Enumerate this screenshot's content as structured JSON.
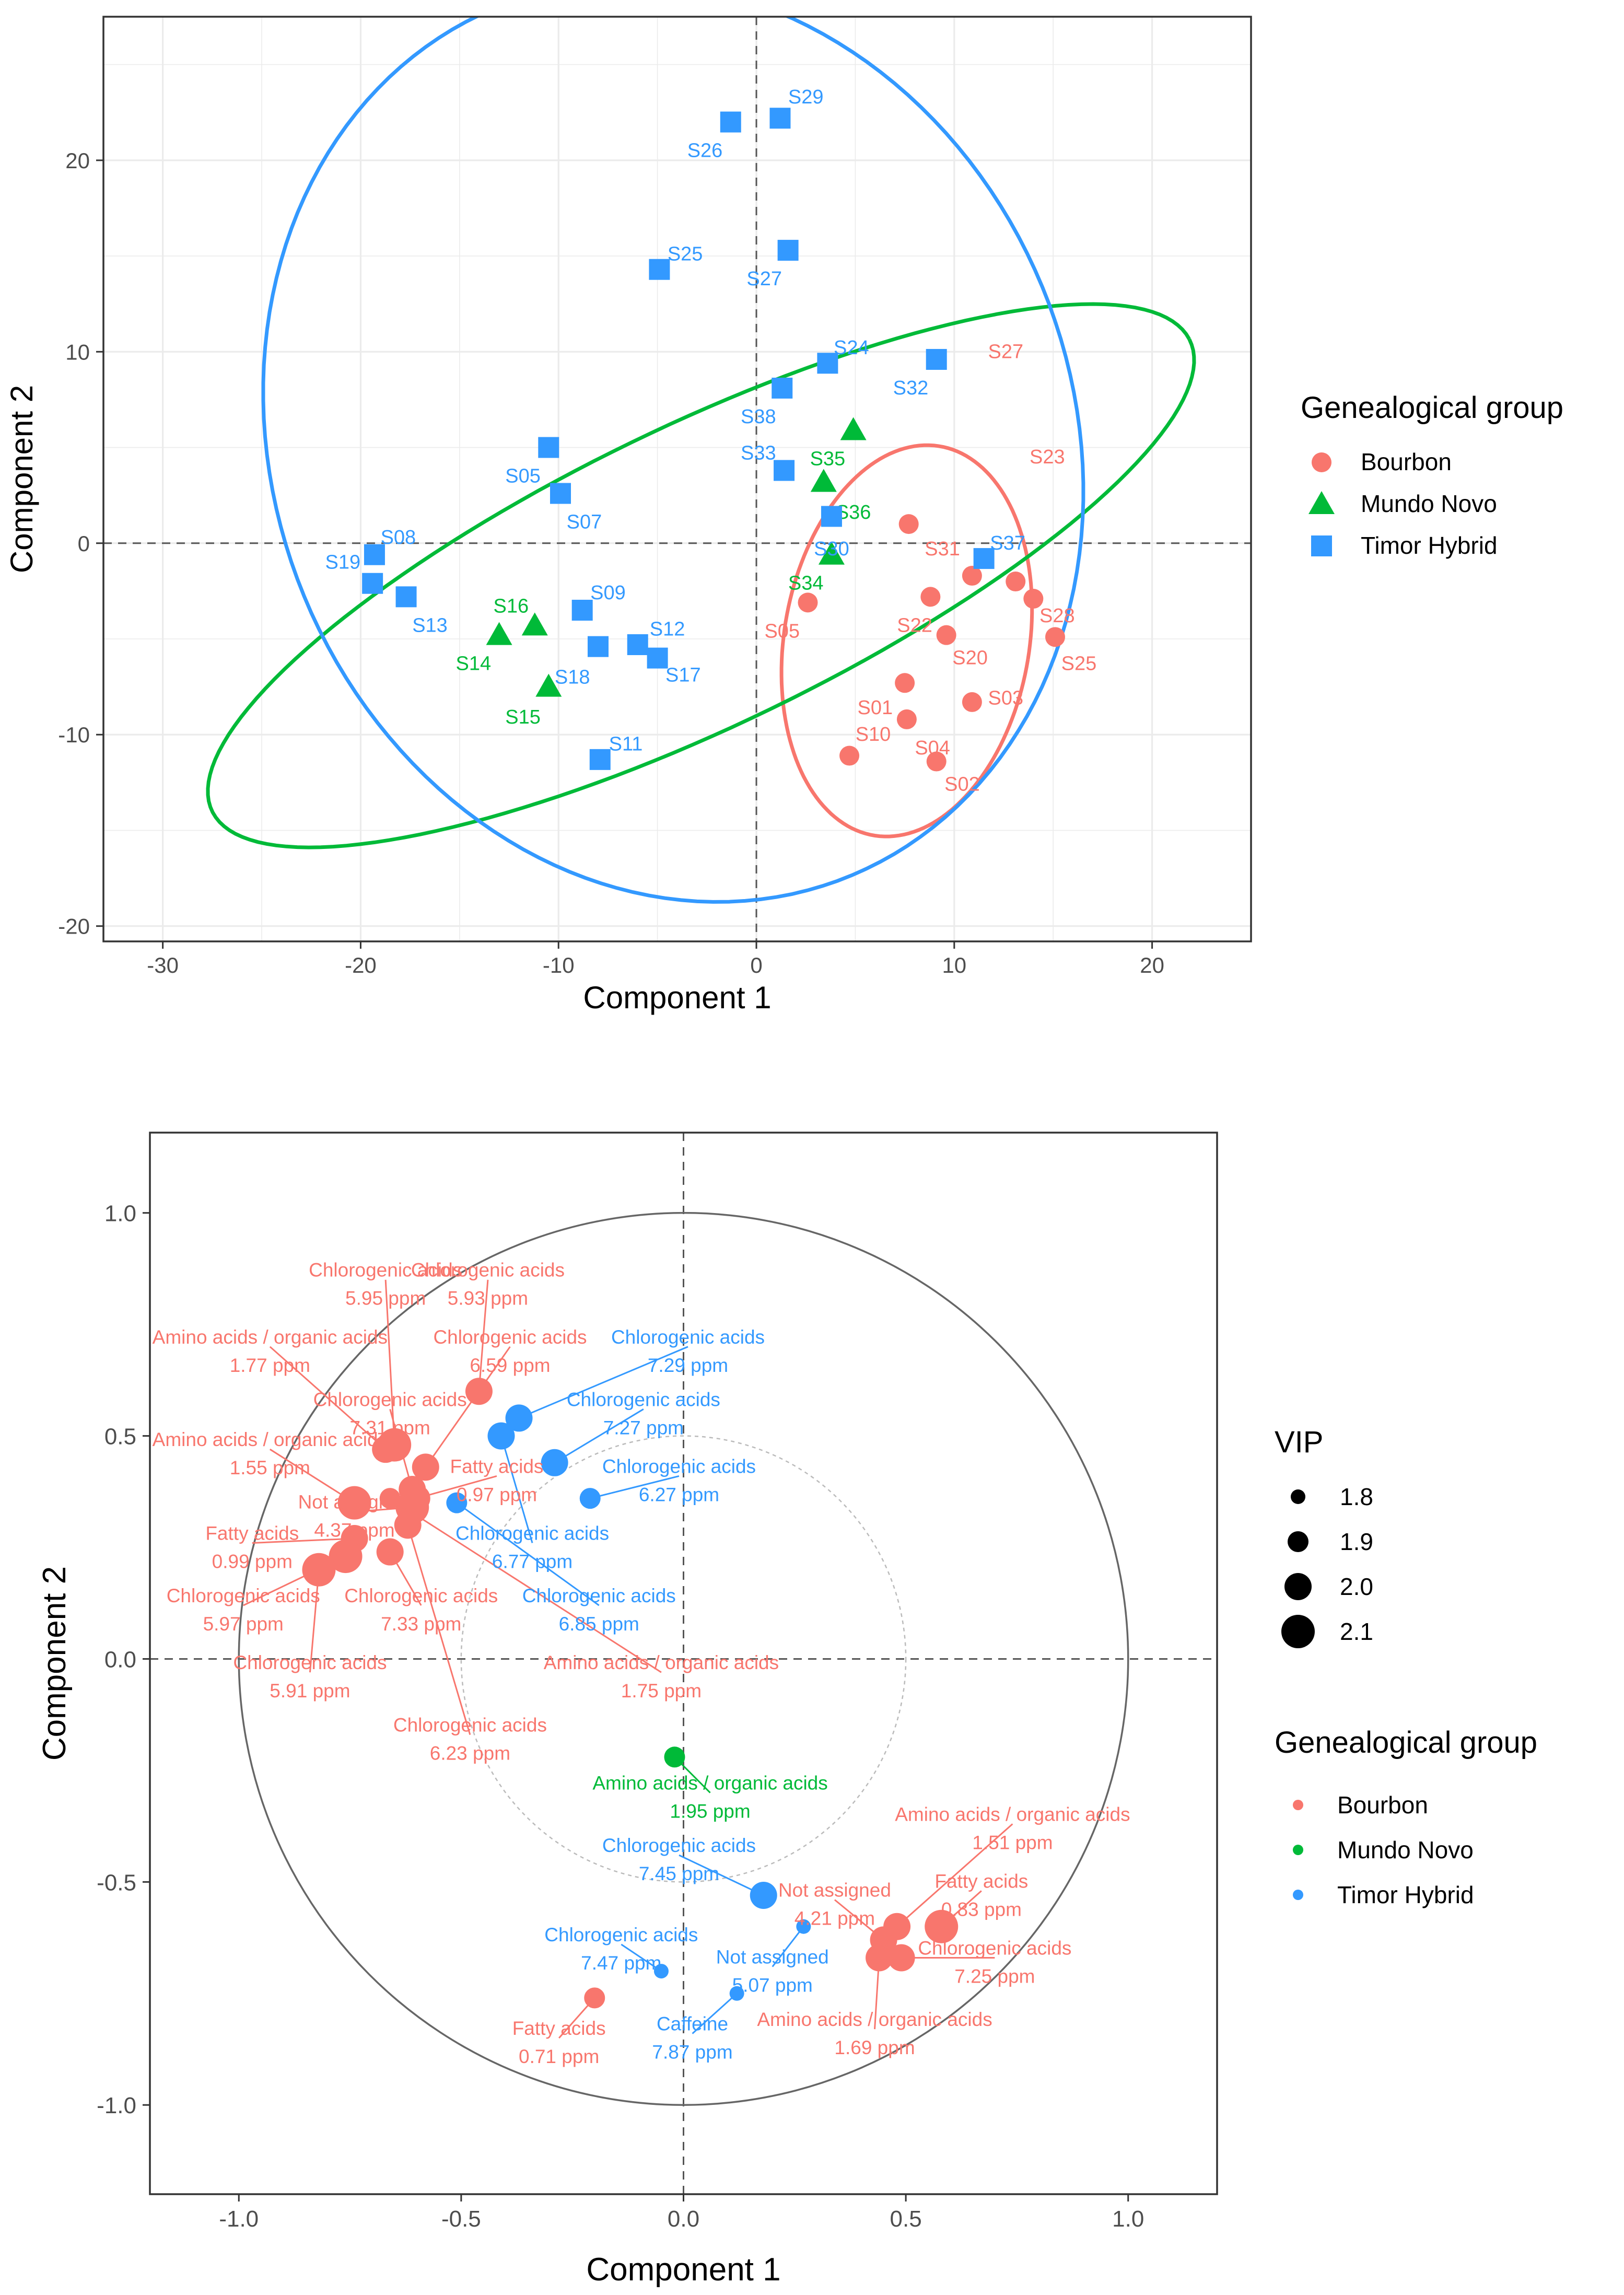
{
  "chart_data": [
    {
      "type": "scatter",
      "title": "",
      "xlabel": "Component 1",
      "ylabel": "Component 2",
      "xlim": [
        -33,
        25
      ],
      "ylim": [
        -20.8,
        27.5
      ],
      "xticks": [
        -30,
        -20,
        -10,
        0,
        10,
        20
      ],
      "yticks": [
        -20,
        -10,
        0,
        10,
        20
      ],
      "grid": true,
      "reference_lines": {
        "x": 0,
        "y": 0
      },
      "legend": {
        "title": "Genealogical group",
        "placement": "right"
      },
      "series": [
        {
          "name": "Bourbon",
          "color": "#F8766D",
          "marker": "circle",
          "points": [
            {
              "label": "S23",
              "x": 7.7,
              "y": 1.0,
              "ldx": 7,
              "ldy": 3.5
            },
            {
              "label": "S31",
              "x": 10.9,
              "y": -1.7,
              "ldx": -1.5,
              "ldy": 1.4
            },
            {
              "label": "S27",
              "x": 13.1,
              "y": -2.0,
              "ldx": -0.5,
              "ldy": 12
            },
            {
              "label": "S22",
              "x": 8.8,
              "y": -2.8,
              "ldx": -0.8,
              "ldy": -1.5
            },
            {
              "label": "S28",
              "x": 14.0,
              "y": -2.9,
              "ldx": 1.2,
              "ldy": -0.9
            },
            {
              "label": "S05",
              "x": 2.6,
              "y": -3.1,
              "ldx": -1.3,
              "ldy": -1.5
            },
            {
              "label": "S20",
              "x": 9.6,
              "y": -4.8,
              "ldx": 1.2,
              "ldy": -1.2
            },
            {
              "label": "S25",
              "x": 15.1,
              "y": -4.9,
              "ldx": 1.2,
              "ldy": -1.4
            },
            {
              "label": "S01",
              "x": 7.5,
              "y": -7.3,
              "ldx": -1.5,
              "ldy": -1.3
            },
            {
              "label": "S03",
              "x": 10.9,
              "y": -8.3,
              "ldx": 1.7,
              "ldy": 0.2
            },
            {
              "label": "S04",
              "x": 7.6,
              "y": -9.2,
              "ldx": 1.3,
              "ldy": -1.5
            },
            {
              "label": "S10",
              "x": 4.7,
              "y": -11.1,
              "ldx": 1.2,
              "ldy": 1.1
            },
            {
              "label": "S02",
              "x": 9.1,
              "y": -11.4,
              "ldx": 1.3,
              "ldy": -1.2
            }
          ]
        },
        {
          "name": "Mundo Novo",
          "color": "#00BA38",
          "marker": "triangle",
          "points": [
            {
              "label": "S35",
              "x": 4.9,
              "y": 5.9,
              "ldx": -1.3,
              "ldy": -1.5
            },
            {
              "label": "S36",
              "x": 3.4,
              "y": 3.2,
              "ldx": 1.5,
              "ldy": -1.6
            },
            {
              "label": "S34",
              "x": 3.8,
              "y": -0.6,
              "ldx": -1.3,
              "ldy": -1.5
            },
            {
              "label": "S16",
              "x": -11.2,
              "y": -4.3,
              "ldx": -1.2,
              "ldy": 1.0
            },
            {
              "label": "S14",
              "x": -13.0,
              "y": -4.8,
              "ldx": -1.3,
              "ldy": -1.5
            },
            {
              "label": "S15",
              "x": -10.5,
              "y": -7.5,
              "ldx": -1.3,
              "ldy": -1.6
            }
          ]
        },
        {
          "name": "Timor Hybrid",
          "color": "#3399FF",
          "marker": "square",
          "points": [
            {
              "label": "S29",
              "x": 1.2,
              "y": 22.2,
              "ldx": 1.3,
              "ldy": 1.1
            },
            {
              "label": "S26",
              "x": -1.3,
              "y": 22.0,
              "ldx": -1.3,
              "ldy": -1.5
            },
            {
              "label": "S27",
              "x": 1.6,
              "y": 15.3,
              "ldx": -1.2,
              "ldy": -1.5
            },
            {
              "label": "S25",
              "x": -4.9,
              "y": 14.3,
              "ldx": 1.3,
              "ldy": 0.8
            },
            {
              "label": "S24",
              "x": 3.6,
              "y": 9.4,
              "ldx": 1.2,
              "ldy": 0.8
            },
            {
              "label": "S32",
              "x": 9.1,
              "y": 9.6,
              "ldx": -1.3,
              "ldy": -1.5
            },
            {
              "label": "S38",
              "x": 1.3,
              "y": 8.1,
              "ldx": -1.2,
              "ldy": -1.5
            },
            {
              "label": "S05",
              "x": -10.5,
              "y": 5.0,
              "ldx": -1.3,
              "ldy": -1.5
            },
            {
              "label": "S33",
              "x": 1.4,
              "y": 3.8,
              "ldx": -1.3,
              "ldy": 0.9
            },
            {
              "label": "S07",
              "x": -9.9,
              "y": 2.6,
              "ldx": 1.2,
              "ldy": -1.5
            },
            {
              "label": "S30",
              "x": 3.8,
              "y": 1.4,
              "ldx": 0.0,
              "ldy": -1.7
            },
            {
              "label": "S37",
              "x": 11.5,
              "y": -0.8,
              "ldx": 1.2,
              "ldy": 0.8
            },
            {
              "label": "S08",
              "x": -19.3,
              "y": -0.6,
              "ldx": 1.2,
              "ldy": 0.9
            },
            {
              "label": "S19",
              "x": -19.4,
              "y": -2.1,
              "ldx": -1.5,
              "ldy": 1.1
            },
            {
              "label": "S13",
              "x": -17.7,
              "y": -2.8,
              "ldx": 1.2,
              "ldy": -1.5
            },
            {
              "label": "S09",
              "x": -8.8,
              "y": -3.5,
              "ldx": 1.3,
              "ldy": 0.9
            },
            {
              "label": "S12",
              "x": -5.0,
              "y": -6.0,
              "ldx": 0.5,
              "ldy": 1.5
            },
            {
              "label": "S18",
              "x": -8.0,
              "y": -5.4,
              "ldx": -1.3,
              "ldy": -1.6
            },
            {
              "label": "S17",
              "x": -6.0,
              "y": -5.3,
              "ldx": 2.3,
              "ldy": -1.6
            },
            {
              "label": "S11",
              "x": -7.9,
              "y": -11.3,
              "ldx": 1.3,
              "ldy": 0.8
            }
          ]
        }
      ],
      "ellipses": [
        {
          "group": "Bourbon",
          "color": "#F8766D",
          "cx": 7.6,
          "cy": -5.1,
          "rx": 6.2,
          "ry": 10.3,
          "angle": -9
        },
        {
          "group": "Mundo Novo",
          "color": "#00BA38",
          "cx": -2.8,
          "cy": -1.7,
          "rx": 27.6,
          "ry": 7.8,
          "angle": 26.6
        },
        {
          "group": "Timor Hybrid",
          "color": "#3399FF",
          "cx": -4.2,
          "cy": 5.3,
          "rx": 20.3,
          "ry": 24.4,
          "angle": 18
        }
      ]
    },
    {
      "type": "scatter",
      "title": "",
      "xlabel": "Component 1",
      "ylabel": "Component 2",
      "xlim": [
        -1.2,
        1.2
      ],
      "ylim": [
        -1.2,
        1.18
      ],
      "xticks": [
        -1.0,
        -0.5,
        0.0,
        0.5,
        1.0
      ],
      "yticks": [
        -1.0,
        -0.5,
        0.0,
        0.5,
        1.0
      ],
      "grid": false,
      "reference_lines": {
        "x": 0,
        "y": 0
      },
      "circles": [
        {
          "r": 1.0,
          "style": "solid"
        },
        {
          "r": 0.5,
          "style": "dotted"
        }
      ],
      "legend_size": {
        "title": "VIP",
        "values": [
          1.8,
          1.9,
          2.0,
          2.1
        ],
        "placement": "right"
      },
      "legend": {
        "title": "Genealogical group",
        "placement": "right"
      },
      "groups": [
        {
          "name": "Bourbon",
          "color": "#F8766D"
        },
        {
          "name": "Mundo Novo",
          "color": "#00BA38"
        },
        {
          "name": "Timor Hybrid",
          "color": "#3399FF"
        }
      ],
      "points": [
        {
          "group": 0,
          "x": -0.46,
          "y": 0.6,
          "vip": 2.0,
          "name": "Chlorogenic acids",
          "value": "5.93 ppm",
          "lx": -0.44,
          "ly": 0.85
        },
        {
          "group": 0,
          "x": -0.65,
          "y": 0.48,
          "vip": 2.1,
          "name": "Chlorogenic acids",
          "value": "5.95 ppm",
          "lx": -0.67,
          "ly": 0.85
        },
        {
          "group": 0,
          "x": -0.67,
          "y": 0.47,
          "vip": 2.0,
          "name": "Amino acids / organic acids",
          "value": "1.77 ppm",
          "lx": -0.93,
          "ly": 0.7
        },
        {
          "group": 0,
          "x": -0.58,
          "y": 0.43,
          "vip": 2.0,
          "name": "Chlorogenic acids",
          "value": "6.59 ppm",
          "lx": -0.39,
          "ly": 0.7
        },
        {
          "group": 0,
          "x": -0.61,
          "y": 0.38,
          "vip": 2.0,
          "name": "Chlorogenic acids",
          "value": "7.31 ppm",
          "lx": -0.66,
          "ly": 0.56
        },
        {
          "group": 0,
          "x": -0.74,
          "y": 0.35,
          "vip": 2.1,
          "name": "Amino acids / organic acids",
          "value": "1.55 ppm",
          "lx": -0.93,
          "ly": 0.47
        },
        {
          "group": 0,
          "x": -0.6,
          "y": 0.36,
          "vip": 2.0,
          "name": "Fatty acids",
          "value": "0.97 ppm",
          "lx": -0.42,
          "ly": 0.41
        },
        {
          "group": 0,
          "x": -0.61,
          "y": 0.34,
          "vip": 2.1,
          "name": "Not assigned",
          "value": "4.37 ppm",
          "lx": -0.74,
          "ly": 0.33
        },
        {
          "group": 0,
          "x": -0.74,
          "y": 0.27,
          "vip": 2.0,
          "name": "Fatty acids",
          "value": "0.99 ppm",
          "lx": -0.97,
          "ly": 0.26
        },
        {
          "group": 0,
          "x": -0.76,
          "y": 0.23,
          "vip": 2.1,
          "name": "Chlorogenic acids",
          "value": "5.97 ppm",
          "lx": -0.99,
          "ly": 0.12
        },
        {
          "group": 0,
          "x": -0.82,
          "y": 0.2,
          "vip": 2.1,
          "name": "Chlorogenic acids",
          "value": "5.91 ppm",
          "lx": -0.84,
          "ly": -0.03
        },
        {
          "group": 0,
          "x": -0.66,
          "y": 0.24,
          "vip": 2.0,
          "name": "Chlorogenic acids",
          "value": "7.33 ppm",
          "lx": -0.59,
          "ly": 0.12
        },
        {
          "group": 0,
          "x": -0.62,
          "y": 0.3,
          "vip": 2.0,
          "name": "Chlorogenic acids",
          "value": "6.23 ppm",
          "lx": -0.48,
          "ly": -0.17
        },
        {
          "group": 0,
          "x": -0.66,
          "y": 0.36,
          "vip": 1.9,
          "name": "Amino acids / organic acids",
          "value": "1.75 ppm",
          "lx": -0.05,
          "ly": -0.03
        },
        {
          "group": 2,
          "x": -0.37,
          "y": 0.54,
          "vip": 2.0,
          "name": "Chlorogenic acids",
          "value": "7.29 ppm",
          "lx": 0.01,
          "ly": 0.7
        },
        {
          "group": 2,
          "x": -0.41,
          "y": 0.5,
          "vip": 2.0,
          "name": "Chlorogenic acids",
          "value": "6.77 ppm",
          "lx": -0.34,
          "ly": 0.26
        },
        {
          "group": 2,
          "x": -0.29,
          "y": 0.44,
          "vip": 2.0,
          "name": "Chlorogenic acids",
          "value": "7.27 ppm",
          "lx": -0.09,
          "ly": 0.56
        },
        {
          "group": 2,
          "x": -0.21,
          "y": 0.36,
          "vip": 1.9,
          "name": "Chlorogenic acids",
          "value": "6.27 ppm",
          "lx": -0.01,
          "ly": 0.41
        },
        {
          "group": 2,
          "x": -0.51,
          "y": 0.35,
          "vip": 1.9,
          "name": "Chlorogenic acids",
          "value": "6.85 ppm",
          "lx": -0.19,
          "ly": 0.12
        },
        {
          "group": 1,
          "x": -0.02,
          "y": -0.22,
          "vip": 1.9,
          "name": "Amino acids / organic acids",
          "value": "1.95 ppm",
          "lx": 0.06,
          "ly": -0.3
        },
        {
          "group": 2,
          "x": 0.18,
          "y": -0.53,
          "vip": 2.0,
          "name": "Chlorogenic acids",
          "value": "7.45 ppm",
          "lx": -0.01,
          "ly": -0.44
        },
        {
          "group": 2,
          "x": 0.27,
          "y": -0.6,
          "vip": 1.8,
          "name": "Not assigned",
          "value": "5.07 ppm",
          "lx": 0.2,
          "ly": -0.69
        },
        {
          "group": 2,
          "x": -0.05,
          "y": -0.7,
          "vip": 1.8,
          "name": "Chlorogenic acids",
          "value": "7.47 ppm",
          "lx": -0.14,
          "ly": -0.64
        },
        {
          "group": 2,
          "x": 0.12,
          "y": -0.75,
          "vip": 1.8,
          "name": "Caffeine",
          "value": "7.87 ppm",
          "lx": 0.02,
          "ly": -0.84
        },
        {
          "group": 0,
          "x": -0.2,
          "y": -0.76,
          "vip": 1.9,
          "name": "Fatty acids",
          "value": "0.71 ppm",
          "lx": -0.28,
          "ly": -0.85
        },
        {
          "group": 0,
          "x": 0.48,
          "y": -0.6,
          "vip": 2.0,
          "name": "Amino acids / organic acids",
          "value": "1.51 ppm",
          "lx": 0.74,
          "ly": -0.37
        },
        {
          "group": 0,
          "x": 0.58,
          "y": -0.6,
          "vip": 2.1,
          "name": "Fatty acids",
          "value": "0.83 ppm",
          "lx": 0.67,
          "ly": -0.52
        },
        {
          "group": 0,
          "x": 0.45,
          "y": -0.63,
          "vip": 2.0,
          "name": "Not assigned",
          "value": "4.21 ppm",
          "lx": 0.34,
          "ly": -0.54
        },
        {
          "group": 0,
          "x": 0.49,
          "y": -0.67,
          "vip": 2.0,
          "name": "Chlorogenic acids",
          "value": "7.25 ppm",
          "lx": 0.7,
          "ly": -0.67
        },
        {
          "group": 0,
          "x": 0.44,
          "y": -0.67,
          "vip": 2.0,
          "name": "Amino acids / organic acids",
          "value": "1.69 ppm",
          "lx": 0.43,
          "ly": -0.83
        }
      ]
    }
  ]
}
